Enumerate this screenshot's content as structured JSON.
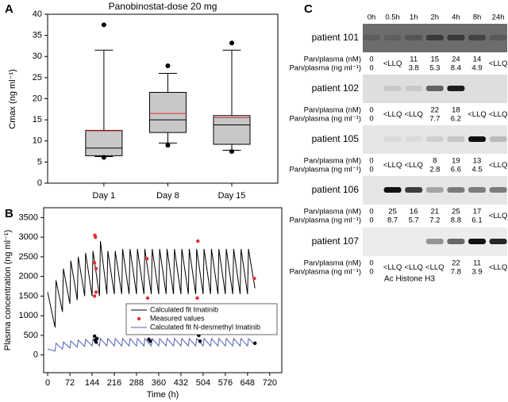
{
  "chart_data": [
    {
      "type": "box",
      "panel_label": "A",
      "title": "Panobinostat-dose 20 mg",
      "ylabel": "Cmax (ng ml⁻¹)",
      "categories": [
        "Day 1",
        "Day 8",
        "Day 15"
      ],
      "boxes": [
        {
          "whisker_low": 6.3,
          "q1": 6.5,
          "median": 8.3,
          "mean": 12.4,
          "q3": 12.5,
          "whisker_high": 31.5,
          "outliers": [
            37.5,
            6.1
          ]
        },
        {
          "whisker_low": 9.5,
          "q1": 12,
          "median": 15,
          "mean": 16.5,
          "q3": 21.5,
          "whisker_high": 26,
          "outliers": [
            27.8,
            9
          ]
        },
        {
          "whisker_low": 7.8,
          "q1": 9.2,
          "median": 13.8,
          "mean": 15.5,
          "q3": 16,
          "whisker_high": 31.5,
          "outliers": [
            33.2,
            7.5
          ]
        }
      ],
      "box_color": "#c8c8c8",
      "mean_color": "#e03030",
      "ylim": [
        0,
        40
      ],
      "yticks": [
        0,
        5,
        10,
        15,
        20,
        25,
        30,
        35,
        40
      ],
      "grid": false
    },
    {
      "type": "line",
      "panel_label": "B",
      "xlabel": "Time (h)",
      "ylabel": "Plasma concentration (ng ml⁻¹)",
      "x": [
        0,
        24,
        27,
        48,
        51,
        72,
        75,
        96,
        99,
        120,
        123,
        144,
        147,
        168,
        171,
        192,
        195,
        216,
        219,
        240,
        243,
        264,
        267,
        288,
        291,
        312,
        315,
        336,
        339,
        360,
        363,
        384,
        387,
        408,
        411,
        432,
        435,
        456,
        459,
        480,
        483,
        504,
        507,
        528,
        531,
        552,
        555,
        576,
        579,
        600,
        603,
        624,
        627,
        648,
        651,
        672
      ],
      "series": [
        {
          "name": "Calculated fit Imatinib",
          "color": "#000000",
          "style": "line",
          "values": [
            1600,
            700,
            1900,
            1100,
            2200,
            1300,
            2400,
            1400,
            2500,
            1500,
            2600,
            1500,
            2650,
            1500,
            2900,
            1550,
            2650,
            1550,
            2650,
            1550,
            2700,
            1550,
            2700,
            1550,
            2700,
            1550,
            2700,
            1550,
            2700,
            1550,
            2700,
            1550,
            2700,
            1550,
            2700,
            1550,
            2700,
            1550,
            2700,
            1550,
            2700,
            1550,
            2700,
            1550,
            2700,
            1550,
            2700,
            1550,
            2700,
            1550,
            2700,
            1550,
            2700,
            1550,
            2700,
            1700
          ]
        },
        {
          "name": "Measured values",
          "color": "#e03030",
          "style": "marker",
          "x": [
            153,
            155,
            152,
            157,
            152,
            157,
            322,
            324,
            487,
            485,
            670
          ],
          "values": [
            3050,
            3000,
            2350,
            2200,
            1500,
            1600,
            2450,
            1450,
            2900,
            1450,
            1950
          ]
        },
        {
          "name": "Calculated fit N-desmethyl Imatinib",
          "color": "#5060b0",
          "style": "line",
          "values": [
            150,
            100,
            300,
            150,
            330,
            180,
            360,
            200,
            380,
            220,
            400,
            230,
            410,
            230,
            420,
            230,
            420,
            230,
            420,
            230,
            420,
            230,
            420,
            230,
            420,
            230,
            420,
            230,
            420,
            230,
            420,
            230,
            420,
            230,
            420,
            230,
            420,
            230,
            420,
            230,
            420,
            230,
            420,
            230,
            420,
            230,
            420,
            230,
            420,
            230,
            420,
            230,
            420,
            230,
            420,
            250
          ]
        },
        {
          "color": "#000000",
          "style": "marker",
          "x": [
            152,
            154,
            157,
            160,
            328,
            333,
            490,
            494,
            672
          ],
          "values": [
            480,
            380,
            330,
            420,
            400,
            350,
            500,
            350,
            300
          ]
        }
      ],
      "xlim": [
        -13,
        759
      ],
      "xticks": [
        0,
        72,
        144,
        216,
        288,
        360,
        432,
        504,
        576,
        648,
        720
      ],
      "ylim": [
        -450,
        3750
      ],
      "yticks": [
        0,
        500,
        1000,
        1500,
        2000,
        2500,
        3000,
        3500
      ],
      "legend": "lower right",
      "grid": false
    }
  ],
  "blot": {
    "panel_label": "C",
    "timepoints": [
      "0h",
      "0.5h",
      "1h",
      "2h",
      "4h",
      "8h",
      "24h"
    ],
    "row_labels": [
      "Pan/plasma (nM)",
      "Pan/plasma (ng ml⁻¹)"
    ],
    "patients": [
      {
        "name": "patient 101",
        "nM": [
          0,
          "<LLQ",
          11,
          15,
          24,
          14,
          "<LLQ"
        ],
        "ng": [
          0,
          null,
          3.8,
          5.3,
          8.4,
          4.9,
          null
        ]
      },
      {
        "name": "patient 102",
        "nM": [
          0,
          "<LLQ",
          "<LLQ",
          22,
          18,
          "<LLQ",
          "<LLQ"
        ],
        "ng": [
          0,
          null,
          null,
          7.7,
          6.2,
          null,
          null
        ]
      },
      {
        "name": "patient 105",
        "nM": [
          0,
          "<LLQ",
          "<LLQ",
          8,
          19,
          13,
          "<LLQ"
        ],
        "ng": [
          0,
          null,
          null,
          2.8,
          6.6,
          4.5,
          null
        ]
      },
      {
        "name": "patient 106",
        "nM": [
          0,
          25,
          16,
          21,
          25,
          17,
          "<LLQ"
        ],
        "ng": [
          0,
          8.7,
          5.7,
          7.2,
          8.8,
          6.1,
          null
        ]
      },
      {
        "name": "patient 107",
        "nM": [
          0,
          "<LLQ",
          "<LLQ",
          "<LLQ",
          22,
          11,
          "<LLQ"
        ],
        "ng": [
          0,
          null,
          null,
          null,
          7.8,
          3.9,
          null
        ]
      }
    ],
    "footer": "Ac Histone H3"
  }
}
